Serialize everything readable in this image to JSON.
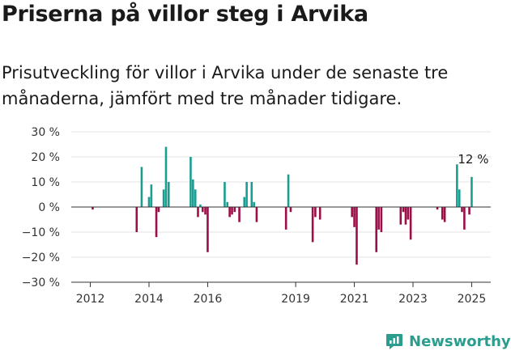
{
  "title": "Priserna på villor steg i Arvika",
  "subtitle": "Prisutveckling för villor i Arvika under de senaste tre månaderna, jämfört med tre månader tidigare.",
  "brand": "Newsworthy",
  "colors": {
    "positive": "#1a9e92",
    "negative": "#9c0e47",
    "grid": "#e3e3e3",
    "text": "#333333",
    "brand": "#2a9d8f"
  },
  "chart_data": {
    "type": "bar",
    "ylim": [
      -30,
      30
    ],
    "yticks": [
      30,
      20,
      10,
      0,
      -10,
      -20,
      -30
    ],
    "ytick_labels": [
      "30 %",
      "20 %",
      "10 %",
      "0 %",
      "−10 %",
      "−20 %",
      "−30 %"
    ],
    "xlim": [
      2011.35,
      2025.65
    ],
    "xticks": [
      2012,
      2014,
      2016,
      2019,
      2021,
      2023,
      2025
    ],
    "xtick_labels": [
      "2012",
      "2014",
      "2016",
      "2019",
      "2021",
      "2023",
      "2025"
    ],
    "annotation": {
      "text": "12 %",
      "x": 2025.0,
      "y": 12
    },
    "grid": true,
    "series": [
      {
        "x": [
          2012.08,
          2013.58,
          2013.75,
          2014.0,
          2014.08,
          2014.25,
          2014.33,
          2014.5,
          2014.58,
          2014.67,
          2015.42,
          2015.5,
          2015.58,
          2015.67,
          2015.75,
          2015.83,
          2015.92,
          2016.0,
          2016.58,
          2016.67,
          2016.75,
          2016.83,
          2016.92,
          2017.0,
          2017.08,
          2017.25,
          2017.33,
          2017.5,
          2017.58,
          2017.67,
          2018.67,
          2018.75,
          2018.83,
          2019.58,
          2019.67,
          2019.83,
          2020.92,
          2021.0,
          2021.08,
          2021.75,
          2021.83,
          2021.92,
          2022.58,
          2022.67,
          2022.75,
          2022.83,
          2022.92,
          2023.83,
          2024.0,
          2024.08,
          2024.5,
          2024.58,
          2024.67,
          2024.75,
          2024.92,
          2025.0
        ],
        "values": [
          -1,
          -10,
          16,
          4,
          9,
          -12,
          -2,
          7,
          24,
          10,
          20,
          11,
          7,
          -4,
          1,
          -2,
          -3,
          -18,
          10,
          2,
          -4,
          -3,
          -2,
          0,
          -6,
          4,
          10,
          10,
          2,
          -6,
          -9,
          13,
          -2,
          -14,
          -4,
          -5,
          -4,
          -8,
          -23,
          -18,
          -9,
          -10,
          -7,
          -2,
          -7,
          -5,
          -13,
          -1,
          -5,
          -6,
          17,
          7,
          -2,
          -9,
          -3,
          12
        ]
      }
    ]
  }
}
